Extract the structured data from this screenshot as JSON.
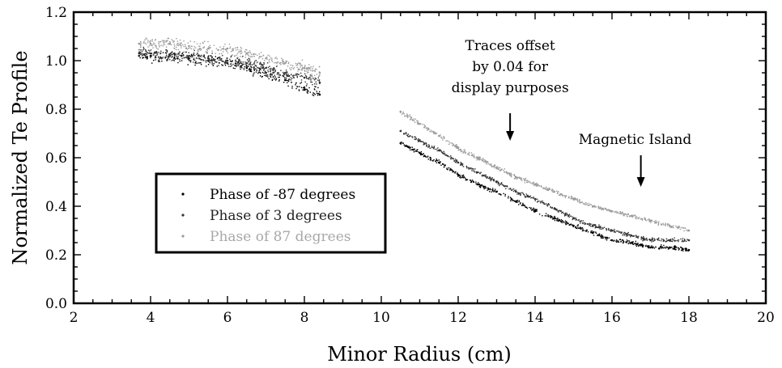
{
  "chart_data": {
    "type": "scatter",
    "title": "",
    "xlabel": "Minor Radius (cm)",
    "ylabel": "Normalized Te Profile",
    "xlim": [
      2,
      20
    ],
    "ylim": [
      0.0,
      1.2
    ],
    "x_ticks": [
      "2",
      "4",
      "6",
      "8",
      "10",
      "12",
      "14",
      "16",
      "18",
      "20"
    ],
    "y_ticks": [
      "0.0",
      "0.2",
      "0.4",
      "0.6",
      "0.8",
      "1.0",
      "1.2"
    ],
    "grid": false,
    "legend_position": "center-left",
    "series": [
      {
        "name": "Phase of -87 degrees",
        "color": "#000000",
        "points": [
          [
            3.7,
            1.02
          ],
          [
            4.0,
            1.02
          ],
          [
            4.5,
            1.02
          ],
          [
            5.0,
            1.01
          ],
          [
            5.5,
            1.0
          ],
          [
            6.0,
            0.99
          ],
          [
            6.5,
            0.97
          ],
          [
            7.0,
            0.95
          ],
          [
            7.5,
            0.92
          ],
          [
            8.0,
            0.88
          ],
          [
            8.4,
            0.86
          ],
          [
            10.5,
            0.66
          ],
          [
            11.0,
            0.62
          ],
          [
            11.5,
            0.58
          ],
          [
            12.0,
            0.53
          ],
          [
            12.5,
            0.49
          ],
          [
            13.0,
            0.46
          ],
          [
            13.5,
            0.42
          ],
          [
            14.0,
            0.38
          ],
          [
            14.5,
            0.35
          ],
          [
            15.0,
            0.32
          ],
          [
            15.5,
            0.29
          ],
          [
            16.0,
            0.26
          ],
          [
            16.5,
            0.25
          ],
          [
            17.0,
            0.23
          ],
          [
            17.5,
            0.23
          ],
          [
            18.0,
            0.22
          ]
        ]
      },
      {
        "name": "Phase of 3 degrees",
        "color": "#333333",
        "points": [
          [
            3.7,
            1.03
          ],
          [
            4.0,
            1.03
          ],
          [
            4.5,
            1.02
          ],
          [
            5.0,
            1.02
          ],
          [
            5.5,
            1.01
          ],
          [
            6.0,
            1.0
          ],
          [
            6.5,
            0.99
          ],
          [
            7.0,
            0.97
          ],
          [
            7.5,
            0.95
          ],
          [
            8.0,
            0.93
          ],
          [
            8.4,
            0.91
          ],
          [
            10.5,
            0.71
          ],
          [
            11.0,
            0.67
          ],
          [
            11.5,
            0.63
          ],
          [
            12.0,
            0.58
          ],
          [
            12.5,
            0.54
          ],
          [
            13.0,
            0.5
          ],
          [
            13.5,
            0.46
          ],
          [
            14.0,
            0.43
          ],
          [
            14.5,
            0.39
          ],
          [
            15.0,
            0.35
          ],
          [
            15.5,
            0.32
          ],
          [
            16.0,
            0.3
          ],
          [
            16.5,
            0.28
          ],
          [
            17.0,
            0.26
          ],
          [
            17.5,
            0.26
          ],
          [
            18.0,
            0.26
          ]
        ]
      },
      {
        "name": "Phase of 87 degrees",
        "color": "#9a9a9a",
        "points": [
          [
            3.7,
            1.07
          ],
          [
            4.0,
            1.07
          ],
          [
            4.5,
            1.07
          ],
          [
            5.0,
            1.06
          ],
          [
            5.5,
            1.05
          ],
          [
            6.0,
            1.05
          ],
          [
            6.5,
            1.03
          ],
          [
            7.0,
            1.01
          ],
          [
            7.5,
            0.99
          ],
          [
            8.0,
            0.97
          ],
          [
            8.4,
            0.95
          ],
          [
            10.5,
            0.79
          ],
          [
            11.0,
            0.74
          ],
          [
            11.5,
            0.69
          ],
          [
            12.0,
            0.64
          ],
          [
            12.5,
            0.6
          ],
          [
            13.0,
            0.56
          ],
          [
            13.5,
            0.52
          ],
          [
            14.0,
            0.49
          ],
          [
            14.5,
            0.46
          ],
          [
            15.0,
            0.43
          ],
          [
            15.5,
            0.4
          ],
          [
            16.0,
            0.38
          ],
          [
            16.5,
            0.36
          ],
          [
            17.0,
            0.34
          ],
          [
            17.5,
            0.32
          ],
          [
            18.0,
            0.3
          ]
        ]
      }
    ],
    "annotations": [
      {
        "lines": [
          "Traces offset",
          "by 0.04 for",
          "display purposes"
        ],
        "arrow_x": 13.35,
        "arrow_tip_y": 0.67
      },
      {
        "lines": [
          "Magnetic Island"
        ],
        "arrow_x": 16.75,
        "arrow_tip_y": 0.48
      }
    ]
  }
}
